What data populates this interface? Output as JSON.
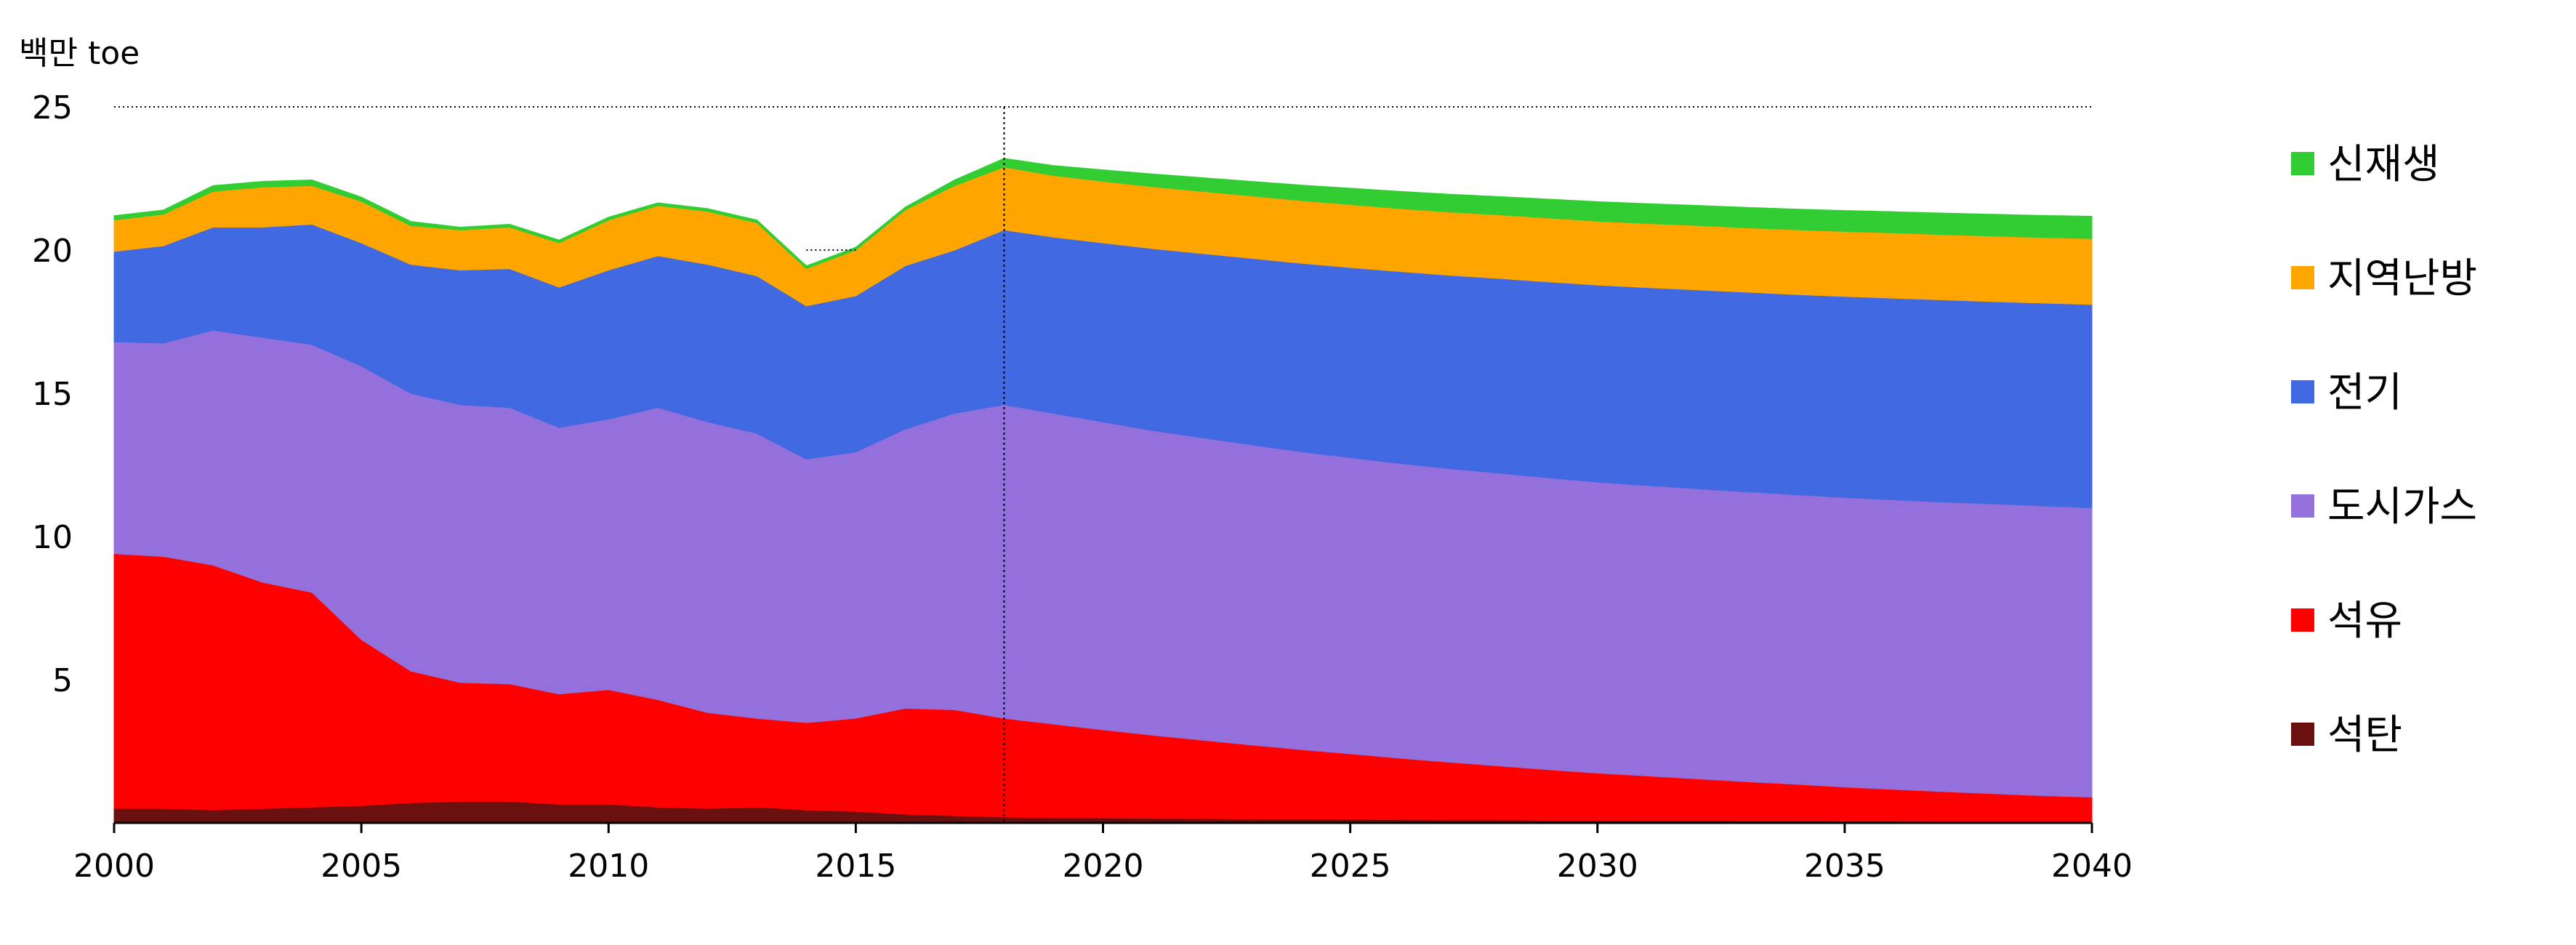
{
  "chart_data": {
    "type": "area",
    "stacked": true,
    "ylabel": "백만 toe",
    "ylim": [
      0,
      25
    ],
    "yticks": [
      5,
      10,
      15,
      20,
      25
    ],
    "xticks": [
      2000,
      2005,
      2010,
      2015,
      2020,
      2025,
      2030,
      2035,
      2040
    ],
    "xlim": [
      2000,
      2040
    ],
    "projection_start": 2018,
    "grid": "dotted line at y=25 only",
    "legend_placement": "right",
    "x": [
      2000,
      2001,
      2002,
      2003,
      2004,
      2005,
      2006,
      2007,
      2008,
      2009,
      2010,
      2011,
      2012,
      2013,
      2014,
      2015,
      2016,
      2017,
      2018,
      2019,
      2020,
      2021,
      2022,
      2023,
      2024,
      2025,
      2026,
      2027,
      2028,
      2029,
      2030,
      2031,
      2032,
      2033,
      2034,
      2035,
      2036,
      2037,
      2038,
      2039,
      2040
    ],
    "series": [
      {
        "name": "석탄",
        "color": "#6B0F0F",
        "values": [
          0.5,
          0.5,
          0.45,
          0.5,
          0.55,
          0.6,
          0.7,
          0.75,
          0.75,
          0.65,
          0.65,
          0.55,
          0.5,
          0.55,
          0.45,
          0.4,
          0.3,
          0.25,
          0.2,
          0.18,
          0.17,
          0.16,
          0.15,
          0.14,
          0.13,
          0.12,
          0.11,
          0.1,
          0.1,
          0.09,
          0.09,
          0.08,
          0.08,
          0.07,
          0.07,
          0.06,
          0.06,
          0.05,
          0.05,
          0.05,
          0.05
        ]
      },
      {
        "name": "석유",
        "color": "#FF0000",
        "values": [
          8.9,
          8.8,
          8.55,
          7.9,
          7.5,
          5.8,
          4.6,
          4.15,
          4.1,
          3.85,
          4.0,
          3.75,
          3.35,
          3.1,
          3.05,
          3.25,
          3.7,
          3.7,
          3.45,
          3.27,
          3.08,
          2.9,
          2.74,
          2.58,
          2.43,
          2.29,
          2.15,
          2.02,
          1.89,
          1.77,
          1.65,
          1.56,
          1.46,
          1.37,
          1.28,
          1.19,
          1.11,
          1.04,
          0.97,
          0.9,
          0.85
        ]
      },
      {
        "name": "도시가스",
        "color": "#9370DB",
        "values": [
          7.4,
          7.45,
          8.2,
          8.55,
          8.65,
          9.55,
          9.7,
          9.7,
          9.65,
          9.3,
          9.45,
          10.2,
          10.15,
          9.95,
          9.2,
          9.3,
          9.75,
          10.35,
          10.95,
          10.85,
          10.75,
          10.64,
          10.56,
          10.48,
          10.4,
          10.34,
          10.29,
          10.25,
          10.22,
          10.19,
          10.16,
          10.14,
          10.13,
          10.12,
          10.11,
          10.11,
          10.11,
          10.11,
          10.12,
          10.12,
          10.1
        ]
      },
      {
        "name": "전기",
        "color": "#4169E1",
        "values": [
          3.15,
          3.4,
          3.6,
          3.85,
          4.2,
          4.3,
          4.5,
          4.7,
          4.85,
          4.9,
          5.2,
          5.3,
          5.5,
          5.5,
          5.35,
          5.45,
          5.7,
          5.7,
          6.1,
          6.15,
          6.25,
          6.35,
          6.43,
          6.51,
          6.58,
          6.64,
          6.7,
          6.75,
          6.8,
          6.84,
          6.88,
          6.91,
          6.94,
          6.97,
          6.99,
          7.02,
          7.04,
          7.06,
          7.06,
          7.08,
          7.1
        ]
      },
      {
        "name": "지역난방",
        "color": "#FFA500",
        "values": [
          1.1,
          1.1,
          1.25,
          1.4,
          1.35,
          1.45,
          1.35,
          1.4,
          1.45,
          1.55,
          1.75,
          1.75,
          1.85,
          1.85,
          1.3,
          1.6,
          1.95,
          2.25,
          2.2,
          2.15,
          2.15,
          2.16,
          2.17,
          2.18,
          2.19,
          2.2,
          2.2,
          2.21,
          2.22,
          2.23,
          2.23,
          2.24,
          2.25,
          2.25,
          2.26,
          2.27,
          2.28,
          2.28,
          2.29,
          2.29,
          2.3
        ]
      },
      {
        "name": "신재생",
        "color": "#32CD32",
        "values": [
          0.15,
          0.15,
          0.2,
          0.2,
          0.2,
          0.15,
          0.15,
          0.1,
          0.1,
          0.1,
          0.1,
          0.1,
          0.1,
          0.1,
          0.1,
          0.1,
          0.1,
          0.2,
          0.3,
          0.35,
          0.4,
          0.45,
          0.48,
          0.51,
          0.54,
          0.57,
          0.6,
          0.62,
          0.64,
          0.66,
          0.68,
          0.69,
          0.7,
          0.71,
          0.72,
          0.73,
          0.74,
          0.75,
          0.76,
          0.77,
          0.78
        ]
      }
    ]
  }
}
